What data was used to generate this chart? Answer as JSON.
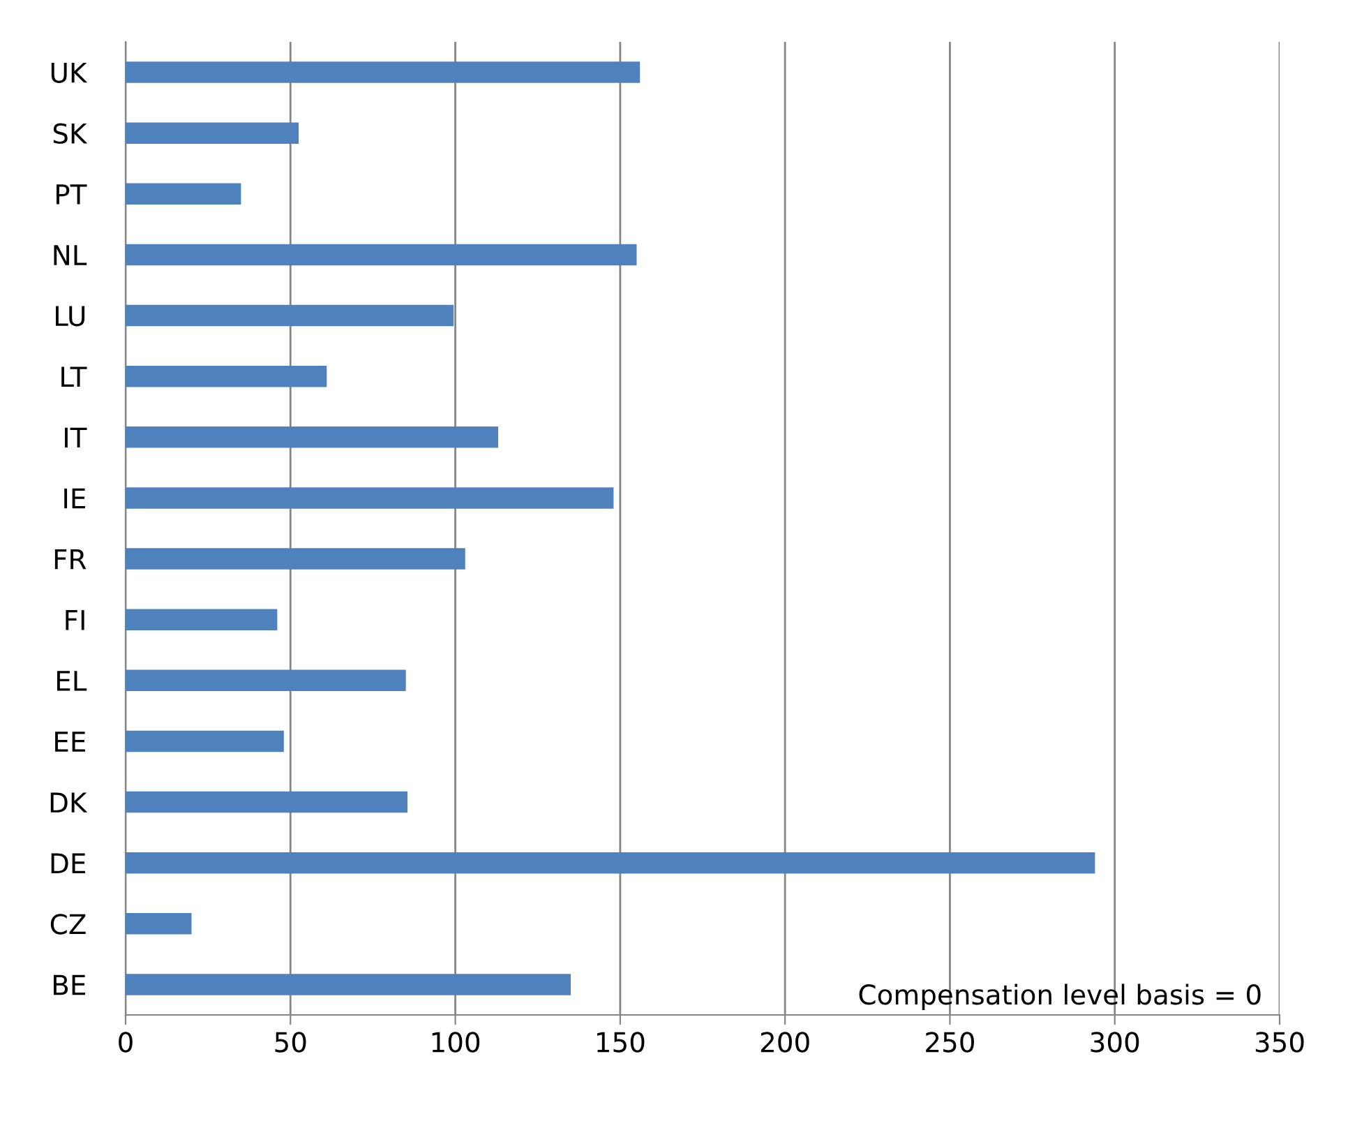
{
  "chart_data": {
    "type": "bar",
    "orientation": "horizontal",
    "categories": [
      "UK",
      "SK",
      "PT",
      "NL",
      "LU",
      "LT",
      "IT",
      "IE",
      "FR",
      "FI",
      "EL",
      "EE",
      "DK",
      "DE",
      "CZ",
      "BE"
    ],
    "values": [
      156,
      52.5,
      35,
      155,
      99.5,
      61,
      113,
      148,
      103,
      46,
      85,
      48,
      85.5,
      294,
      20,
      135
    ],
    "color": "#4f81bd",
    "xlim": [
      0,
      350
    ],
    "xticks": [
      0,
      50,
      100,
      150,
      200,
      250,
      300,
      350
    ],
    "grid": "x",
    "annotations": [
      "Compensation level basis = 0"
    ]
  }
}
